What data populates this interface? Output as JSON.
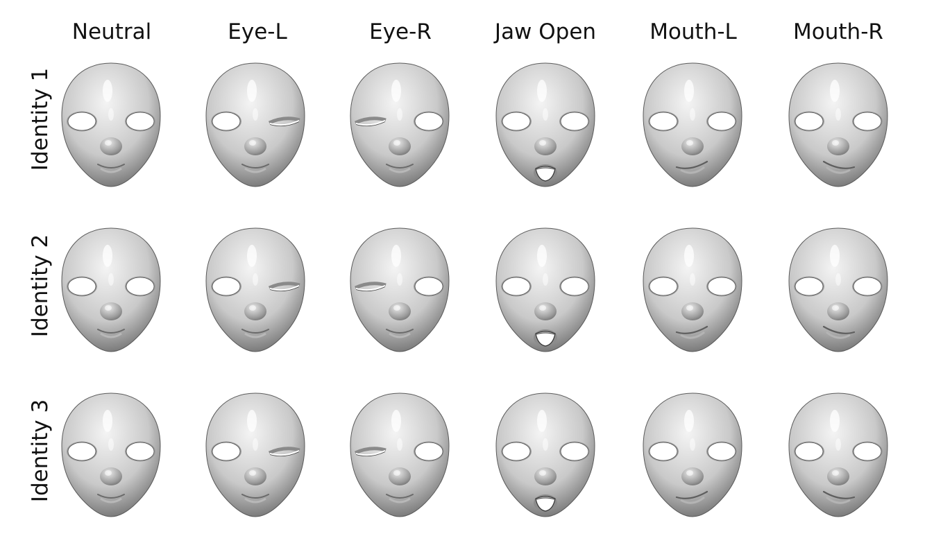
{
  "columns": [
    {
      "label": "Neutral",
      "expression": "neutral"
    },
    {
      "label": "Eye-L",
      "expression": "eye-l"
    },
    {
      "label": "Eye-R",
      "expression": "eye-r"
    },
    {
      "label": "Jaw Open",
      "expression": "jaw-open"
    },
    {
      "label": "Mouth-L",
      "expression": "mouth-l"
    },
    {
      "label": "Mouth-R",
      "expression": "mouth-r"
    }
  ],
  "rows": [
    {
      "label": "Identity 1"
    },
    {
      "label": "Identity 2"
    },
    {
      "label": "Identity 3"
    }
  ],
  "colors": {
    "face_light": "#f4f4f4",
    "face_mid": "#c9c9c9",
    "face_dark": "#6f6f6f",
    "eye_hole": "#ffffff",
    "text": "#111111"
  }
}
